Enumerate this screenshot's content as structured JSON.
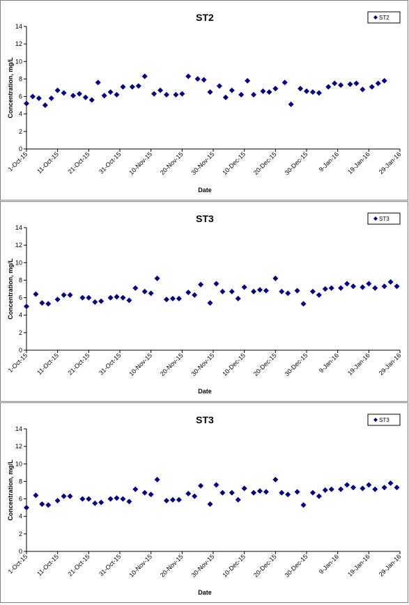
{
  "chart_data": [
    {
      "type": "scatter",
      "title": "ST2",
      "xlabel": "Date",
      "ylabel": "Concentration, mg/L",
      "ylim": [
        0,
        14
      ],
      "yticks": [
        "0",
        "2",
        "4",
        "6",
        "8",
        "10",
        "12",
        "14"
      ],
      "xticks": [
        "1-Oct-15",
        "11-Oct-15",
        "21-Oct-15",
        "31-Oct-15",
        "10-Nov-15",
        "20-Nov-15",
        "30-Nov-15",
        "10-Dec-15",
        "20-Dec-15",
        "30-Dec-15",
        "9-Jan-16",
        "19-Jan-16",
        "29-Jan-16"
      ],
      "legend": "top-right",
      "color": "#00008B",
      "series": [
        {
          "name": "ST2",
          "points": [
            [
              "1-Oct-15",
              5.2
            ],
            [
              "3-Oct-15",
              6.0
            ],
            [
              "5-Oct-15",
              5.8
            ],
            [
              "7-Oct-15",
              5.0
            ],
            [
              "9-Oct-15",
              5.8
            ],
            [
              "11-Oct-15",
              6.7
            ],
            [
              "13-Oct-15",
              6.4
            ],
            [
              "16-Oct-15",
              6.1
            ],
            [
              "18-Oct-15",
              6.3
            ],
            [
              "20-Oct-15",
              5.9
            ],
            [
              "22-Oct-15",
              5.6
            ],
            [
              "24-Oct-15",
              7.6
            ],
            [
              "26-Oct-15",
              6.1
            ],
            [
              "28-Oct-15",
              6.5
            ],
            [
              "30-Oct-15",
              6.2
            ],
            [
              "1-Nov-15",
              7.1
            ],
            [
              "4-Nov-15",
              7.1
            ],
            [
              "6-Nov-15",
              7.2
            ],
            [
              "8-Nov-15",
              8.3
            ],
            [
              "11-Nov-15",
              6.3
            ],
            [
              "13-Nov-15",
              6.7
            ],
            [
              "15-Nov-15",
              6.2
            ],
            [
              "18-Nov-15",
              6.2
            ],
            [
              "20-Nov-15",
              6.3
            ],
            [
              "22-Nov-15",
              8.3
            ],
            [
              "25-Nov-15",
              8.0
            ],
            [
              "27-Nov-15",
              7.9
            ],
            [
              "29-Nov-15",
              6.5
            ],
            [
              "2-Dec-15",
              7.2
            ],
            [
              "4-Dec-15",
              5.9
            ],
            [
              "6-Dec-15",
              6.7
            ],
            [
              "9-Dec-15",
              6.2
            ],
            [
              "11-Dec-15",
              7.8
            ],
            [
              "13-Dec-15",
              6.2
            ],
            [
              "16-Dec-15",
              6.6
            ],
            [
              "18-Dec-15",
              6.5
            ],
            [
              "20-Dec-15",
              6.9
            ],
            [
              "23-Dec-15",
              7.6
            ],
            [
              "25-Dec-15",
              5.1
            ],
            [
              "28-Dec-15",
              6.9
            ],
            [
              "30-Dec-15",
              6.6
            ],
            [
              "1-Jan-16",
              6.5
            ],
            [
              "3-Jan-16",
              6.4
            ],
            [
              "6-Jan-16",
              7.1
            ],
            [
              "8-Jan-16",
              7.5
            ],
            [
              "10-Jan-16",
              7.3
            ],
            [
              "13-Jan-16",
              7.4
            ],
            [
              "15-Jan-16",
              7.5
            ],
            [
              "17-Jan-16",
              6.8
            ],
            [
              "20-Jan-16",
              7.1
            ],
            [
              "22-Jan-16",
              7.5
            ],
            [
              "24-Jan-16",
              7.8
            ]
          ]
        }
      ]
    },
    {
      "type": "scatter",
      "title": "ST3",
      "xlabel": "Date",
      "ylabel": "Concentration, mg/L",
      "ylim": [
        0,
        14
      ],
      "yticks": [
        "0",
        "2",
        "4",
        "6",
        "8",
        "10",
        "12",
        "14"
      ],
      "xticks": [
        "1-Oct-15",
        "11-Oct-15",
        "21-Oct-15",
        "31-Oct-15",
        "10-Nov-15",
        "20-Nov-15",
        "30-Nov-15",
        "10-Dec-15",
        "20-Dec-15",
        "30-Dec-15",
        "9-Jan-16",
        "19-Jan-16",
        "29-Jan-16"
      ],
      "legend": "top-right",
      "color": "#00008B",
      "series": [
        {
          "name": "ST3",
          "points": [
            [
              "1-Oct-15",
              5.0
            ],
            [
              "4-Oct-15",
              6.4
            ],
            [
              "6-Oct-15",
              5.4
            ],
            [
              "8-Oct-15",
              5.3
            ],
            [
              "11-Oct-15",
              5.8
            ],
            [
              "13-Oct-15",
              6.3
            ],
            [
              "15-Oct-15",
              6.3
            ],
            [
              "19-Oct-15",
              6.0
            ],
            [
              "21-Oct-15",
              6.0
            ],
            [
              "23-Oct-15",
              5.5
            ],
            [
              "25-Oct-15",
              5.6
            ],
            [
              "28-Oct-15",
              6.0
            ],
            [
              "30-Oct-15",
              6.1
            ],
            [
              "1-Nov-15",
              6.0
            ],
            [
              "3-Nov-15",
              5.7
            ],
            [
              "5-Nov-15",
              7.1
            ],
            [
              "8-Nov-15",
              6.7
            ],
            [
              "10-Nov-15",
              6.5
            ],
            [
              "12-Nov-15",
              8.2
            ],
            [
              "15-Nov-15",
              5.8
            ],
            [
              "17-Nov-15",
              5.9
            ],
            [
              "19-Nov-15",
              5.9
            ],
            [
              "22-Nov-15",
              6.6
            ],
            [
              "24-Nov-15",
              6.3
            ],
            [
              "26-Nov-15",
              7.5
            ],
            [
              "29-Nov-15",
              5.4
            ],
            [
              "1-Dec-15",
              7.6
            ],
            [
              "3-Dec-15",
              6.7
            ],
            [
              "6-Dec-15",
              6.7
            ],
            [
              "8-Dec-15",
              5.9
            ],
            [
              "10-Dec-15",
              7.2
            ],
            [
              "13-Dec-15",
              6.7
            ],
            [
              "15-Dec-15",
              6.9
            ],
            [
              "17-Dec-15",
              6.8
            ],
            [
              "20-Dec-15",
              8.2
            ],
            [
              "22-Dec-15",
              6.7
            ],
            [
              "24-Dec-15",
              6.5
            ],
            [
              "27-Dec-15",
              6.8
            ],
            [
              "29-Dec-15",
              5.3
            ],
            [
              "1-Jan-16",
              6.7
            ],
            [
              "3-Jan-16",
              6.3
            ],
            [
              "5-Jan-16",
              7.0
            ],
            [
              "7-Jan-16",
              7.1
            ],
            [
              "10-Jan-16",
              7.1
            ],
            [
              "12-Jan-16",
              7.6
            ],
            [
              "14-Jan-16",
              7.3
            ],
            [
              "17-Jan-16",
              7.2
            ],
            [
              "19-Jan-16",
              7.6
            ],
            [
              "21-Jan-16",
              7.1
            ],
            [
              "24-Jan-16",
              7.3
            ],
            [
              "26-Jan-16",
              7.8
            ],
            [
              "28-Jan-16",
              7.3
            ]
          ]
        }
      ]
    },
    {
      "type": "scatter",
      "title": "ST3",
      "xlabel": "Date",
      "ylabel": "Concentration, mg/L",
      "ylim": [
        0,
        14
      ],
      "yticks": [
        "0",
        "2",
        "4",
        "6",
        "8",
        "10",
        "12",
        "14"
      ],
      "xticks": [
        "1-Oct-15",
        "11-Oct-15",
        "21-Oct-15",
        "31-Oct-15",
        "10-Nov-15",
        "20-Nov-15",
        "30-Nov-15",
        "10-Dec-15",
        "20-Dec-15",
        "30-Dec-15",
        "9-Jan-16",
        "19-Jan-16",
        "29-Jan-16"
      ],
      "legend": "top-right",
      "color": "#00008B",
      "series": [
        {
          "name": "ST3",
          "points": [
            [
              "1-Oct-15",
              5.0
            ],
            [
              "4-Oct-15",
              6.4
            ],
            [
              "6-Oct-15",
              5.4
            ],
            [
              "8-Oct-15",
              5.3
            ],
            [
              "11-Oct-15",
              5.8
            ],
            [
              "13-Oct-15",
              6.3
            ],
            [
              "15-Oct-15",
              6.3
            ],
            [
              "19-Oct-15",
              6.0
            ],
            [
              "21-Oct-15",
              6.0
            ],
            [
              "23-Oct-15",
              5.5
            ],
            [
              "25-Oct-15",
              5.6
            ],
            [
              "28-Oct-15",
              6.0
            ],
            [
              "30-Oct-15",
              6.1
            ],
            [
              "1-Nov-15",
              6.0
            ],
            [
              "3-Nov-15",
              5.7
            ],
            [
              "5-Nov-15",
              7.1
            ],
            [
              "8-Nov-15",
              6.7
            ],
            [
              "10-Nov-15",
              6.5
            ],
            [
              "12-Nov-15",
              8.2
            ],
            [
              "15-Nov-15",
              5.8
            ],
            [
              "17-Nov-15",
              5.9
            ],
            [
              "19-Nov-15",
              5.9
            ],
            [
              "22-Nov-15",
              6.6
            ],
            [
              "24-Nov-15",
              6.3
            ],
            [
              "26-Nov-15",
              7.5
            ],
            [
              "29-Nov-15",
              5.4
            ],
            [
              "1-Dec-15",
              7.6
            ],
            [
              "3-Dec-15",
              6.7
            ],
            [
              "6-Dec-15",
              6.7
            ],
            [
              "8-Dec-15",
              5.9
            ],
            [
              "10-Dec-15",
              7.2
            ],
            [
              "13-Dec-15",
              6.7
            ],
            [
              "15-Dec-15",
              6.9
            ],
            [
              "17-Dec-15",
              6.8
            ],
            [
              "20-Dec-15",
              8.2
            ],
            [
              "22-Dec-15",
              6.7
            ],
            [
              "24-Dec-15",
              6.5
            ],
            [
              "27-Dec-15",
              6.8
            ],
            [
              "29-Dec-15",
              5.3
            ],
            [
              "1-Jan-16",
              6.7
            ],
            [
              "3-Jan-16",
              6.3
            ],
            [
              "5-Jan-16",
              7.0
            ],
            [
              "7-Jan-16",
              7.1
            ],
            [
              "10-Jan-16",
              7.1
            ],
            [
              "12-Jan-16",
              7.6
            ],
            [
              "14-Jan-16",
              7.3
            ],
            [
              "17-Jan-16",
              7.2
            ],
            [
              "19-Jan-16",
              7.6
            ],
            [
              "21-Jan-16",
              7.1
            ],
            [
              "24-Jan-16",
              7.3
            ],
            [
              "26-Jan-16",
              7.8
            ],
            [
              "28-Jan-16",
              7.3
            ]
          ]
        }
      ]
    }
  ]
}
